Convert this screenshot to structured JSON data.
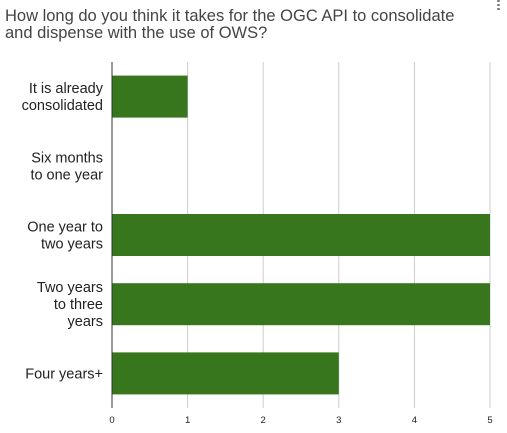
{
  "chart_data": {
    "type": "bar",
    "orientation": "horizontal",
    "title": "How long do you think it takes for the OGC API to consolidate and dispense with the use of OWS?",
    "categories": [
      [
        "It is already",
        "consolidated"
      ],
      [
        "Six months",
        "to one year"
      ],
      [
        "One year to",
        "two years"
      ],
      [
        "Two years",
        "to three",
        "years"
      ],
      [
        "Four years+"
      ]
    ],
    "values": [
      1,
      0,
      5,
      5,
      3
    ],
    "xlim": [
      0,
      5
    ],
    "xticks": [
      "0",
      "1",
      "2",
      "3",
      "4",
      "5"
    ],
    "xlabel": "",
    "ylabel": "",
    "grid": true,
    "bar_color": "#38761d"
  }
}
